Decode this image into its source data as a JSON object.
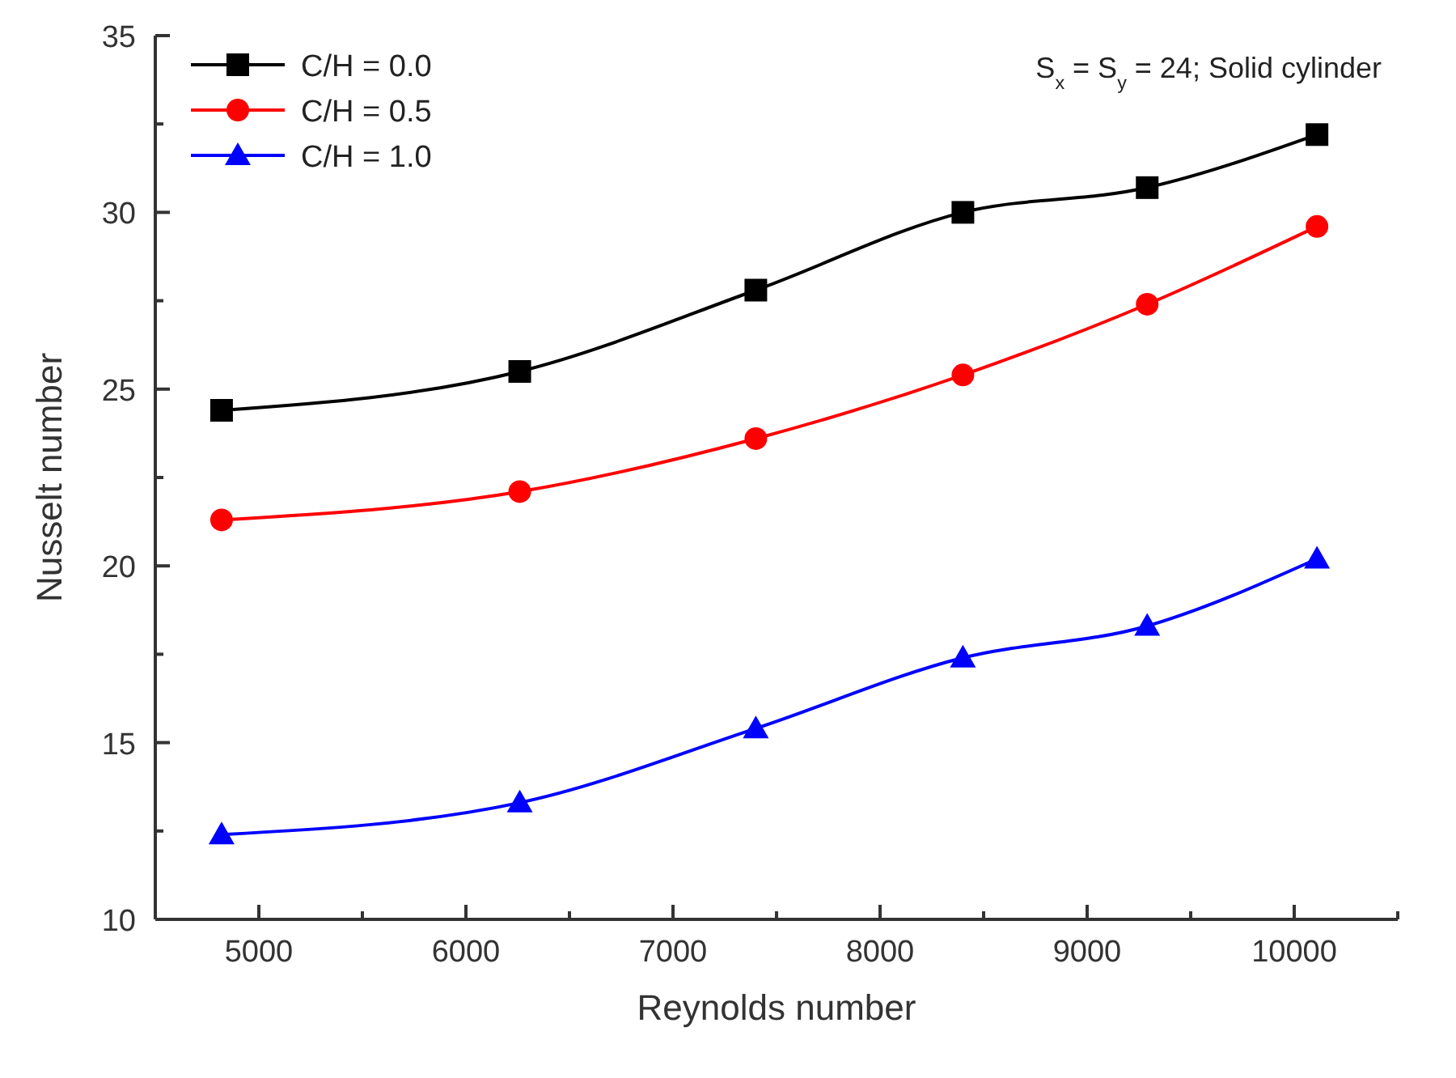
{
  "chart_data": {
    "type": "line",
    "xlabel": "Reynolds number",
    "ylabel": "Nusselt number",
    "x": [
      4820,
      6260,
      7400,
      8400,
      9290,
      10110
    ],
    "series": [
      {
        "name": "C/H = 0.0",
        "color": "#000000",
        "marker": "square",
        "values": [
          24.4,
          25.5,
          27.8,
          30.0,
          30.7,
          32.2
        ]
      },
      {
        "name": "C/H = 0.5",
        "color": "#ff0000",
        "marker": "circle",
        "values": [
          21.3,
          22.1,
          23.6,
          25.4,
          27.4,
          29.6
        ]
      },
      {
        "name": "C/H = 1.0",
        "color": "#0000ff",
        "marker": "triangle",
        "values": [
          12.4,
          13.3,
          15.4,
          17.4,
          18.3,
          20.2
        ]
      }
    ],
    "xlim": [
      4500,
      10500
    ],
    "xticks": [
      5000,
      {
        "value": 5500,
        "label": null
      },
      6000,
      {
        "value": 6500,
        "label": null
      },
      7000,
      {
        "value": 7500,
        "label": null
      },
      8000,
      {
        "value": 8500,
        "label": null
      },
      9000,
      {
        "value": 9500,
        "label": null
      },
      10000,
      {
        "value": 10500,
        "label": null
      }
    ],
    "ylim": [
      10,
      35
    ],
    "yticks": [
      10,
      {
        "value": 12.5,
        "label": null
      },
      15,
      {
        "value": 17.5,
        "label": null
      },
      20,
      {
        "value": 22.5,
        "label": null
      },
      25,
      {
        "value": 27.5,
        "label": null
      },
      30,
      {
        "value": 32.5,
        "label": null
      },
      35
    ],
    "annotations": [
      "S$_{x}$ = S$_{y}$ = 24; Solid cylinder"
    ],
    "legend": "top left",
    "grid": false,
    "line_style": "solid"
  }
}
